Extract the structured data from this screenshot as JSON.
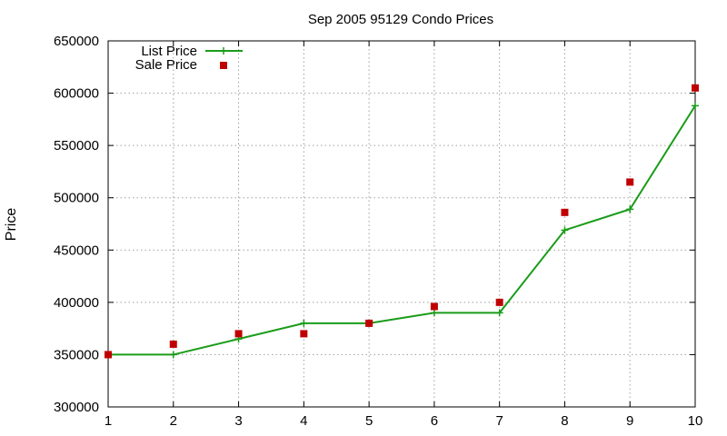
{
  "chart_data": {
    "type": "line",
    "title": "Sep 2005 95129 Condo Prices",
    "xlabel": "",
    "ylabel": "Price",
    "x": [
      1,
      2,
      3,
      4,
      5,
      6,
      7,
      8,
      9,
      10
    ],
    "xlim": [
      1,
      10
    ],
    "ylim": [
      300000,
      650000
    ],
    "x_ticks": [
      1,
      2,
      3,
      4,
      5,
      6,
      7,
      8,
      9,
      10
    ],
    "y_ticks": [
      300000,
      350000,
      400000,
      450000,
      500000,
      550000,
      600000,
      650000
    ],
    "grid": true,
    "legend_position": "top-left",
    "series": [
      {
        "name": "List Price",
        "style": "line-with-plus-markers",
        "color": "#1a9c1a",
        "values": [
          350000,
          350000,
          365000,
          380000,
          380000,
          390000,
          390000,
          469000,
          489000,
          588000
        ]
      },
      {
        "name": "Sale Price",
        "style": "square-markers",
        "color": "#c00000",
        "values": [
          350000,
          360000,
          370000,
          370000,
          380000,
          396000,
          400000,
          486000,
          515000,
          605000
        ]
      }
    ]
  }
}
